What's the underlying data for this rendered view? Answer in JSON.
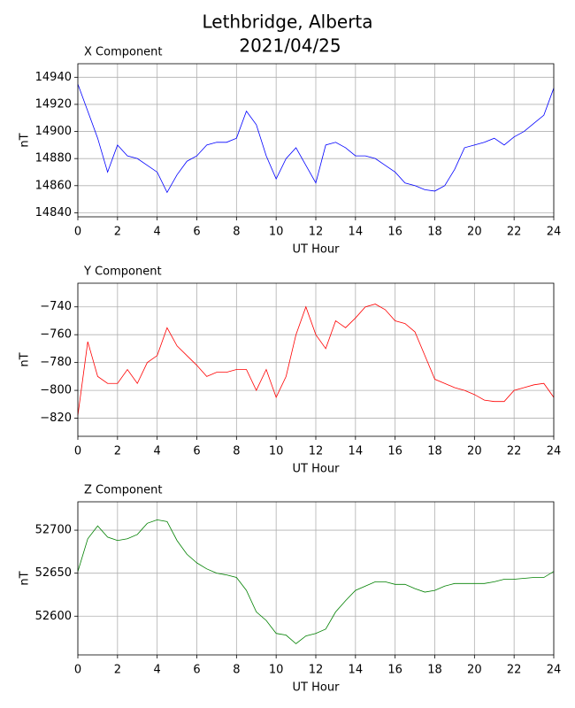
{
  "title": "Lethbridge, Alberta",
  "subtitle": "2021/04/25",
  "chart_data": [
    {
      "type": "line",
      "title": "X Component",
      "xlabel": "UT Hour",
      "ylabel": "nT",
      "color": "#0000ff",
      "grid": true,
      "x": [
        0,
        0.5,
        1,
        1.5,
        2,
        2.5,
        3,
        3.5,
        4,
        4.5,
        5,
        5.5,
        6,
        6.5,
        7,
        7.5,
        8,
        8.5,
        9,
        9.5,
        10,
        10.5,
        11,
        11.5,
        12,
        12.5,
        13,
        13.5,
        14,
        14.5,
        15,
        15.5,
        16,
        16.5,
        17,
        17.5,
        18,
        18.5,
        19,
        19.5,
        20,
        20.5,
        21,
        21.5,
        22,
        22.5,
        23,
        23.5,
        24
      ],
      "values": [
        14935,
        14915,
        14895,
        14870,
        14890,
        14882,
        14880,
        14875,
        14870,
        14855,
        14868,
        14878,
        14882,
        14890,
        14892,
        14892,
        14895,
        14915,
        14905,
        14882,
        14865,
        14880,
        14888,
        14875,
        14862,
        14890,
        14892,
        14888,
        14882,
        14882,
        14880,
        14875,
        14870,
        14862,
        14860,
        14857,
        14856,
        14860,
        14872,
        14888,
        14890,
        14892,
        14895,
        14890,
        14896,
        14900,
        14906,
        14912,
        14932
      ],
      "xlim": [
        0,
        24
      ],
      "xticks": [
        0,
        2,
        4,
        6,
        8,
        10,
        12,
        14,
        16,
        18,
        20,
        22,
        24
      ],
      "ylim": [
        14837,
        14950
      ],
      "yticks": [
        14840,
        14860,
        14880,
        14900,
        14920,
        14940
      ]
    },
    {
      "type": "line",
      "title": "Y Component",
      "xlabel": "UT Hour",
      "ylabel": "nT",
      "color": "#ff0000",
      "grid": true,
      "x": [
        0,
        0.5,
        1,
        1.5,
        2,
        2.5,
        3,
        3.5,
        4,
        4.5,
        5,
        5.5,
        6,
        6.5,
        7,
        7.5,
        8,
        8.5,
        9,
        9.5,
        10,
        10.5,
        11,
        11.5,
        12,
        12.5,
        13,
        13.5,
        14,
        14.5,
        15,
        15.5,
        16,
        16.5,
        17,
        17.5,
        18,
        18.5,
        19,
        19.5,
        20,
        20.5,
        21,
        21.5,
        22,
        22.5,
        23,
        23.5,
        24
      ],
      "values": [
        -818,
        -765,
        -790,
        -795,
        -795,
        -785,
        -795,
        -780,
        -775,
        -755,
        -768,
        -775,
        -782,
        -790,
        -787,
        -787,
        -785,
        -785,
        -800,
        -785,
        -805,
        -790,
        -760,
        -740,
        -760,
        -770,
        -750,
        -755,
        -748,
        -740,
        -738,
        -742,
        -750,
        -752,
        -758,
        -775,
        -792,
        -795,
        -798,
        -800,
        -803,
        -807,
        -808,
        -808,
        -800,
        -798,
        -796,
        -795,
        -805
      ],
      "xlim": [
        0,
        24
      ],
      "xticks": [
        0,
        2,
        4,
        6,
        8,
        10,
        12,
        14,
        16,
        18,
        20,
        22,
        24
      ],
      "ylim": [
        -833,
        -723
      ],
      "yticks": [
        {
          "value": -820,
          "label": "−820"
        },
        {
          "value": -800,
          "label": "−800"
        },
        {
          "value": -780,
          "label": "−780"
        },
        {
          "value": -760,
          "label": "−760"
        },
        {
          "value": -740,
          "label": "−740"
        }
      ]
    },
    {
      "type": "line",
      "title": "Z Component",
      "xlabel": "UT Hour",
      "ylabel": "nT",
      "color": "#008000",
      "grid": true,
      "x": [
        0,
        0.5,
        1,
        1.5,
        2,
        2.5,
        3,
        3.5,
        4,
        4.5,
        5,
        5.5,
        6,
        6.5,
        7,
        7.5,
        8,
        8.5,
        9,
        9.5,
        10,
        10.5,
        11,
        11.5,
        12,
        12.5,
        13,
        13.5,
        14,
        14.5,
        15,
        15.5,
        16,
        16.5,
        17,
        17.5,
        18,
        18.5,
        19,
        19.5,
        20,
        20.5,
        21,
        21.5,
        22,
        22.5,
        23,
        23.5,
        24
      ],
      "values": [
        52652,
        52690,
        52705,
        52692,
        52688,
        52690,
        52695,
        52708,
        52712,
        52710,
        52688,
        52672,
        52662,
        52655,
        52650,
        52648,
        52645,
        52630,
        52605,
        52595,
        52580,
        52578,
        52568,
        52577,
        52580,
        52585,
        52605,
        52618,
        52630,
        52635,
        52640,
        52640,
        52637,
        52637,
        52632,
        52628,
        52630,
        52635,
        52638,
        52638,
        52638,
        52638,
        52640,
        52643,
        52643,
        52644,
        52645,
        52645,
        52652
      ],
      "xlim": [
        0,
        24
      ],
      "xticks": [
        0,
        2,
        4,
        6,
        8,
        10,
        12,
        14,
        16,
        18,
        20,
        22,
        24
      ],
      "ylim": [
        52555,
        52733
      ],
      "yticks": [
        52600,
        52650,
        52700
      ]
    }
  ]
}
